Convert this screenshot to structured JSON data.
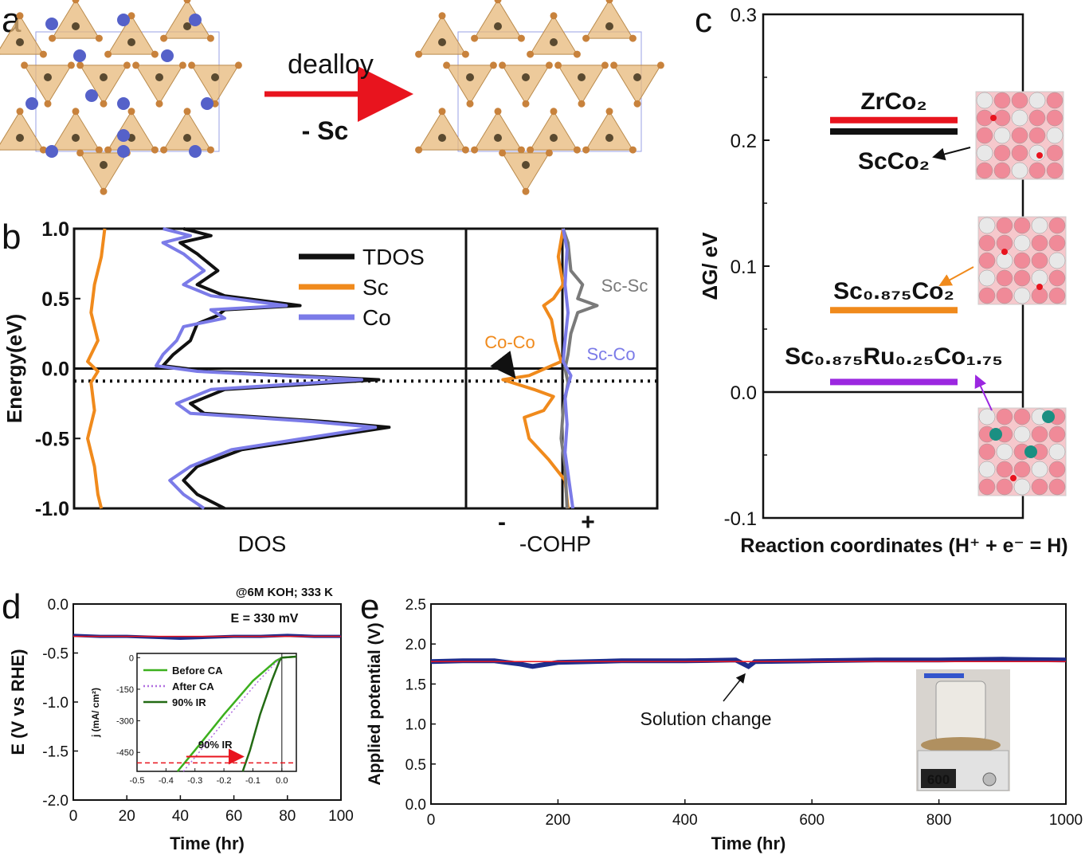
{
  "panel_labels": {
    "a": "a",
    "b": "b",
    "c": "c",
    "d": "d",
    "e": "e"
  },
  "panel_a": {
    "arrow_label": "dealloy",
    "arrow_sublabel": "- Sc"
  },
  "colors": {
    "tdos": "#111111",
    "sc": "#f08a1c",
    "co": "#7b7be8",
    "sc_sc": "#7a7a7a",
    "zrco2": "#e8141e",
    "scco2": "#111111",
    "sc0875co2": "#f08a1c",
    "ru_doped": "#9b27e0",
    "red_line": "#e8141e",
    "blue_data": "#1f2d8c",
    "green": "#3cb01e",
    "dark_green": "#236b14",
    "after_ca": "#b06ee0",
    "arrow_red": "#e8141e",
    "tetra_fill": "#e7b87a",
    "atom_blue": "#5561c9"
  },
  "chart_data": [
    {
      "id": "b-dos",
      "type": "line",
      "xlabel": "DOS",
      "ylabel": "Energy(eV)",
      "ylim": [
        -1.0,
        1.0
      ],
      "yticks": [
        "1.0",
        "0.5",
        "0.0",
        "-0.5",
        "-1.0"
      ],
      "legend": [
        "TDOS",
        "Sc",
        "Co"
      ],
      "series": [
        {
          "name": "TDOS",
          "points": [
            [
              0.28,
              1.0
            ],
            [
              0.36,
              0.95
            ],
            [
              0.27,
              0.9
            ],
            [
              0.32,
              0.82
            ],
            [
              0.38,
              0.7
            ],
            [
              0.32,
              0.6
            ],
            [
              0.4,
              0.52
            ],
            [
              0.62,
              0.45
            ],
            [
              0.4,
              0.42
            ],
            [
              0.38,
              0.38
            ],
            [
              0.32,
              0.32
            ],
            [
              0.3,
              0.2
            ],
            [
              0.25,
              0.1
            ],
            [
              0.22,
              0.02
            ],
            [
              0.35,
              -0.02
            ],
            [
              0.85,
              -0.08
            ],
            [
              0.4,
              -0.15
            ],
            [
              0.3,
              -0.25
            ],
            [
              0.34,
              -0.32
            ],
            [
              0.7,
              -0.38
            ],
            [
              0.88,
              -0.42
            ],
            [
              0.45,
              -0.58
            ],
            [
              0.32,
              -0.7
            ],
            [
              0.28,
              -0.8
            ],
            [
              0.32,
              -0.9
            ],
            [
              0.4,
              -1.0
            ]
          ]
        },
        {
          "name": "Sc",
          "points": [
            [
              0.05,
              1.0
            ],
            [
              0.04,
              0.8
            ],
            [
              0.02,
              0.6
            ],
            [
              0.01,
              0.4
            ],
            [
              0.03,
              0.2
            ],
            [
              0.0,
              0.05
            ],
            [
              0.03,
              -0.02
            ],
            [
              0.01,
              -0.1
            ],
            [
              0.02,
              -0.3
            ],
            [
              0.0,
              -0.5
            ],
            [
              0.02,
              -0.7
            ],
            [
              0.03,
              -0.9
            ],
            [
              0.04,
              -1.0
            ]
          ]
        },
        {
          "name": "Co",
          "points": [
            [
              0.22,
              1.0
            ],
            [
              0.3,
              0.95
            ],
            [
              0.22,
              0.9
            ],
            [
              0.28,
              0.82
            ],
            [
              0.34,
              0.7
            ],
            [
              0.28,
              0.6
            ],
            [
              0.36,
              0.52
            ],
            [
              0.58,
              0.45
            ],
            [
              0.36,
              0.42
            ],
            [
              0.4,
              0.36
            ],
            [
              0.28,
              0.3
            ],
            [
              0.26,
              0.2
            ],
            [
              0.22,
              0.1
            ],
            [
              0.2,
              0.02
            ],
            [
              0.32,
              -0.02
            ],
            [
              0.8,
              -0.08
            ],
            [
              0.36,
              -0.15
            ],
            [
              0.26,
              -0.25
            ],
            [
              0.3,
              -0.32
            ],
            [
              0.66,
              -0.38
            ],
            [
              0.84,
              -0.42
            ],
            [
              0.42,
              -0.58
            ],
            [
              0.3,
              -0.7
            ],
            [
              0.24,
              -0.8
            ],
            [
              0.28,
              -0.9
            ],
            [
              0.34,
              -1.0
            ]
          ]
        }
      ]
    },
    {
      "id": "b-cohp",
      "type": "line",
      "xlabel": "-COHP",
      "x_signs": [
        "-",
        "+"
      ],
      "ylim": [
        -1.0,
        1.0
      ],
      "annotations": [
        "Sc-Sc",
        "Co-Co",
        "Sc-Co"
      ],
      "series": [
        {
          "name": "Co-Co",
          "points": [
            [
              0.0,
              1.0
            ],
            [
              -0.05,
              0.8
            ],
            [
              0.0,
              0.6
            ],
            [
              -0.1,
              0.5
            ],
            [
              -0.2,
              0.45
            ],
            [
              -0.12,
              0.35
            ],
            [
              -0.08,
              0.2
            ],
            [
              -0.02,
              0.05
            ],
            [
              -0.35,
              -0.05
            ],
            [
              -0.62,
              -0.08
            ],
            [
              -0.3,
              -0.15
            ],
            [
              -0.1,
              -0.2
            ],
            [
              -0.2,
              -0.3
            ],
            [
              -0.4,
              -0.35
            ],
            [
              -0.35,
              -0.5
            ],
            [
              -0.15,
              -0.65
            ],
            [
              0.02,
              -0.8
            ],
            [
              0.05,
              -1.0
            ]
          ]
        },
        {
          "name": "Sc-Sc",
          "points": [
            [
              0.0,
              1.0
            ],
            [
              0.05,
              0.9
            ],
            [
              0.08,
              0.7
            ],
            [
              0.2,
              0.6
            ],
            [
              0.15,
              0.5
            ],
            [
              0.35,
              0.45
            ],
            [
              0.15,
              0.4
            ],
            [
              0.08,
              0.25
            ],
            [
              0.05,
              0.1
            ],
            [
              0.02,
              0.0
            ],
            [
              0.05,
              -0.1
            ],
            [
              0.0,
              -0.3
            ],
            [
              -0.02,
              -0.5
            ],
            [
              0.02,
              -0.7
            ],
            [
              0.04,
              -1.0
            ]
          ]
        },
        {
          "name": "Sc-Co",
          "points": [
            [
              0.0,
              1.0
            ],
            [
              0.04,
              0.85
            ],
            [
              0.02,
              0.6
            ],
            [
              0.05,
              0.4
            ],
            [
              0.02,
              0.2
            ],
            [
              0.0,
              0.05
            ],
            [
              0.08,
              -0.05
            ],
            [
              0.02,
              -0.2
            ],
            [
              0.04,
              -0.4
            ],
            [
              0.02,
              -0.6
            ],
            [
              0.06,
              -0.8
            ],
            [
              0.1,
              -1.0
            ]
          ]
        }
      ]
    },
    {
      "id": "c-free-energy",
      "type": "bar",
      "xlabel": "Reaction coordinates (H⁺ + e⁻ = H)",
      "ylabel": "ΔG/ eV",
      "ylim": [
        -0.1,
        0.3
      ],
      "yticks": [
        "0.3",
        "0.2",
        "0.1",
        "0.0",
        "-0.1"
      ],
      "levels": [
        {
          "name": "ZrCo₂",
          "value": 0.216
        },
        {
          "name": "ScCo₂",
          "value": 0.207
        },
        {
          "name": "Sc₀.₈₇₅Co₂",
          "value": 0.065
        },
        {
          "name": "Sc₀.₈₇₅Ru₀.₂₅Co₁.₇₅",
          "value": 0.008
        }
      ]
    },
    {
      "id": "d-stability",
      "type": "line",
      "annotation_condition": "@6M KOH; 333 K",
      "annotation_E": "E = 330 mV",
      "xlabel": "Time (hr)",
      "ylabel": "E (V vs RHE)",
      "xlim": [
        0,
        100
      ],
      "ylim": [
        -2.0,
        0.0
      ],
      "xticks": [
        "0",
        "20",
        "40",
        "60",
        "80",
        "100"
      ],
      "yticks": [
        "0.0",
        "-0.5",
        "-1.0",
        "-1.5",
        "-2.0"
      ],
      "series": [
        {
          "name": "E",
          "points": [
            [
              0,
              -0.32
            ],
            [
              10,
              -0.33
            ],
            [
              20,
              -0.33
            ],
            [
              30,
              -0.34
            ],
            [
              40,
              -0.35
            ],
            [
              50,
              -0.34
            ],
            [
              60,
              -0.33
            ],
            [
              70,
              -0.33
            ],
            [
              80,
              -0.32
            ],
            [
              90,
              -0.33
            ],
            [
              100,
              -0.33
            ]
          ]
        }
      ],
      "inset": {
        "ylabel": "j (mA/ cm²)",
        "xlim": [
          -0.5,
          0.05
        ],
        "ylim": [
          -540,
          20
        ],
        "xticks": [
          "-0.5",
          "-0.4",
          "-0.3",
          "-0.2",
          "-0.1",
          "0.0"
        ],
        "yticks": [
          "0",
          "-150",
          "-300",
          "-450"
        ],
        "legend": [
          "Before CA",
          "After CA",
          "90% IR"
        ],
        "annotation": "90% IR",
        "series": [
          {
            "name": "Before CA",
            "points": [
              [
                -0.36,
                -540
              ],
              [
                -0.3,
                -440
              ],
              [
                -0.2,
                -270
              ],
              [
                -0.1,
                -110
              ],
              [
                -0.02,
                -15
              ],
              [
                0.0,
                0
              ],
              [
                0.05,
                5
              ]
            ]
          },
          {
            "name": "After CA",
            "points": [
              [
                -0.34,
                -540
              ],
              [
                -0.28,
                -440
              ],
              [
                -0.18,
                -270
              ],
              [
                -0.08,
                -110
              ],
              [
                -0.015,
                -15
              ],
              [
                0.0,
                0
              ],
              [
                0.05,
                5
              ]
            ]
          },
          {
            "name": "90% IR",
            "points": [
              [
                -0.135,
                -540
              ],
              [
                -0.11,
                -440
              ],
              [
                -0.075,
                -270
              ],
              [
                -0.035,
                -110
              ],
              [
                -0.008,
                -15
              ],
              [
                0.0,
                0
              ],
              [
                0.05,
                5
              ]
            ]
          }
        ],
        "dashed_level": -500
      }
    },
    {
      "id": "e-applied-potential",
      "type": "line",
      "annotation": "Solution change",
      "xlabel": "Time (hr)",
      "ylabel": "Applied potential (V)",
      "xlim": [
        0,
        1000
      ],
      "ylim": [
        0.0,
        2.5
      ],
      "xticks": [
        "0",
        "200",
        "400",
        "600",
        "800",
        "1000"
      ],
      "yticks": [
        "0.0",
        "0.5",
        "1.0",
        "1.5",
        "2.0",
        "2.5"
      ],
      "series": [
        {
          "name": "V",
          "points": [
            [
              0,
              1.78
            ],
            [
              50,
              1.79
            ],
            [
              100,
              1.79
            ],
            [
              140,
              1.75
            ],
            [
              160,
              1.72
            ],
            [
              200,
              1.77
            ],
            [
              300,
              1.79
            ],
            [
              400,
              1.79
            ],
            [
              480,
              1.8
            ],
            [
              500,
              1.72
            ],
            [
              510,
              1.78
            ],
            [
              600,
              1.79
            ],
            [
              700,
              1.8
            ],
            [
              800,
              1.8
            ],
            [
              900,
              1.81
            ],
            [
              1000,
              1.8
            ]
          ]
        }
      ],
      "photo_display": "600"
    }
  ]
}
